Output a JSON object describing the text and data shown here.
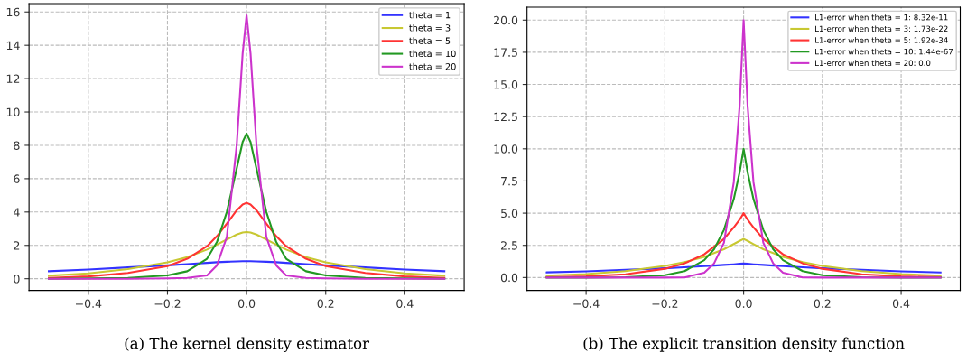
{
  "chart_data": [
    {
      "type": "line",
      "x": [
        -0.5,
        -0.4,
        -0.3,
        -0.2,
        -0.15,
        -0.1,
        -0.075,
        -0.05,
        -0.025,
        -0.01,
        0,
        0.01,
        0.025,
        0.05,
        0.075,
        0.1,
        0.15,
        0.2,
        0.3,
        0.4,
        0.5
      ],
      "series": [
        {
          "name": "theta = 1",
          "color": "#3333ff",
          "values": [
            0.45,
            0.55,
            0.68,
            0.8,
            0.88,
            0.95,
            0.99,
            1.02,
            1.04,
            1.05,
            1.05,
            1.05,
            1.04,
            1.02,
            0.99,
            0.95,
            0.88,
            0.8,
            0.68,
            0.55,
            0.45
          ]
        },
        {
          "name": "theta = 3",
          "color": "#c8c832",
          "values": [
            0.18,
            0.32,
            0.58,
            0.98,
            1.3,
            1.75,
            2.05,
            2.35,
            2.65,
            2.77,
            2.8,
            2.77,
            2.65,
            2.35,
            2.05,
            1.75,
            1.3,
            0.98,
            0.58,
            0.32,
            0.18
          ]
        },
        {
          "name": "theta = 5",
          "color": "#ff3333",
          "values": [
            0.05,
            0.14,
            0.35,
            0.75,
            1.2,
            1.95,
            2.55,
            3.3,
            4.1,
            4.45,
            4.55,
            4.45,
            4.1,
            3.3,
            2.55,
            1.95,
            1.2,
            0.75,
            0.35,
            0.14,
            0.05
          ]
        },
        {
          "name": "theta = 10",
          "color": "#229922",
          "values": [
            0,
            0.02,
            0.05,
            0.2,
            0.45,
            1.2,
            2.2,
            4.0,
            6.6,
            8.2,
            8.7,
            8.2,
            6.6,
            4.0,
            2.2,
            1.2,
            0.45,
            0.2,
            0.05,
            0.02,
            0
          ]
        },
        {
          "name": "theta = 20",
          "color": "#cc33cc",
          "values": [
            0,
            0,
            0,
            0.02,
            0.05,
            0.2,
            0.8,
            2.5,
            8.0,
            13.5,
            15.8,
            13.5,
            8.0,
            2.5,
            0.8,
            0.2,
            0.05,
            0.02,
            0,
            0,
            0
          ]
        }
      ],
      "xlim": [
        -0.55,
        0.55
      ],
      "xticks": [
        {
          "value": -0.4,
          "label": "−0.4"
        },
        {
          "value": -0.2,
          "label": "−0.2"
        },
        {
          "value": 0,
          "label": "0.0"
        },
        {
          "value": 0.2,
          "label": "0.2"
        },
        {
          "value": 0.4,
          "label": "0.4"
        }
      ],
      "ylim": [
        -0.7,
        16.5
      ],
      "yticks": [
        0,
        2,
        4,
        6,
        8,
        10,
        12,
        14,
        16
      ],
      "grid": true,
      "legend": "top right",
      "line_style": "solid",
      "annotations": [
        "(a) The kernel density estimator"
      ]
    },
    {
      "type": "line",
      "x": [
        -0.5,
        -0.4,
        -0.3,
        -0.2,
        -0.15,
        -0.1,
        -0.075,
        -0.05,
        -0.025,
        -0.01,
        0,
        0.01,
        0.025,
        0.05,
        0.075,
        0.1,
        0.15,
        0.2,
        0.3,
        0.4,
        0.5
      ],
      "series": [
        {
          "name": "L1-error when theta = 1: 8.32e-11",
          "color": "#3333ff",
          "values": [
            0.4,
            0.48,
            0.6,
            0.72,
            0.8,
            0.88,
            0.93,
            0.98,
            1.03,
            1.07,
            1.1,
            1.07,
            1.03,
            0.98,
            0.93,
            0.88,
            0.8,
            0.72,
            0.6,
            0.48,
            0.4
          ]
        },
        {
          "name": "L1-error when theta = 3: 1.73e-22",
          "color": "#c8c832",
          "values": [
            0.15,
            0.27,
            0.5,
            0.9,
            1.2,
            1.6,
            1.9,
            2.2,
            2.6,
            2.85,
            3.0,
            2.85,
            2.6,
            2.2,
            1.9,
            1.6,
            1.2,
            0.9,
            0.5,
            0.27,
            0.15
          ]
        },
        {
          "name": "L1-error when theta = 5: 1.92e-34",
          "color": "#ff3333",
          "values": [
            0.03,
            0.09,
            0.25,
            0.68,
            1.1,
            1.8,
            2.4,
            3.0,
            3.9,
            4.5,
            5.0,
            4.5,
            3.9,
            3.0,
            2.4,
            1.8,
            1.1,
            0.68,
            0.25,
            0.09,
            0.03
          ]
        },
        {
          "name": "L1-error when theta = 10: 1.44e-67",
          "color": "#229922",
          "values": [
            0,
            0,
            0.02,
            0.18,
            0.5,
            1.35,
            2.2,
            3.7,
            6.1,
            8.2,
            10.0,
            8.2,
            6.1,
            3.7,
            2.2,
            1.35,
            0.5,
            0.18,
            0.02,
            0,
            0
          ]
        },
        {
          "name": "L1-error when theta = 20: 0.0",
          "color": "#cc33cc",
          "values": [
            0,
            0,
            0,
            0,
            0.01,
            0.37,
            1.1,
            2.7,
            7.4,
            13.4,
            20.0,
            13.4,
            7.4,
            2.7,
            1.1,
            0.37,
            0.01,
            0,
            0,
            0,
            0
          ]
        }
      ],
      "xlim": [
        -0.55,
        0.55
      ],
      "xticks": [
        {
          "value": -0.4,
          "label": "−0.4"
        },
        {
          "value": -0.2,
          "label": "−0.2"
        },
        {
          "value": 0,
          "label": "0.0"
        },
        {
          "value": 0.2,
          "label": "0.2"
        },
        {
          "value": 0.4,
          "label": "0.4"
        }
      ],
      "ylim": [
        -1.0,
        21.0
      ],
      "yticks": [
        {
          "value": 0,
          "label": "0.0"
        },
        2.5,
        {
          "value": 5,
          "label": "5.0"
        },
        7.5,
        {
          "value": 10,
          "label": "10.0"
        },
        12.5,
        {
          "value": 15,
          "label": "15.0"
        },
        17.5,
        {
          "value": 20,
          "label": "20.0"
        }
      ],
      "grid": true,
      "legend": "top right",
      "line_style": "solid",
      "annotations": [
        "(b) The explicit transition density function"
      ]
    }
  ]
}
